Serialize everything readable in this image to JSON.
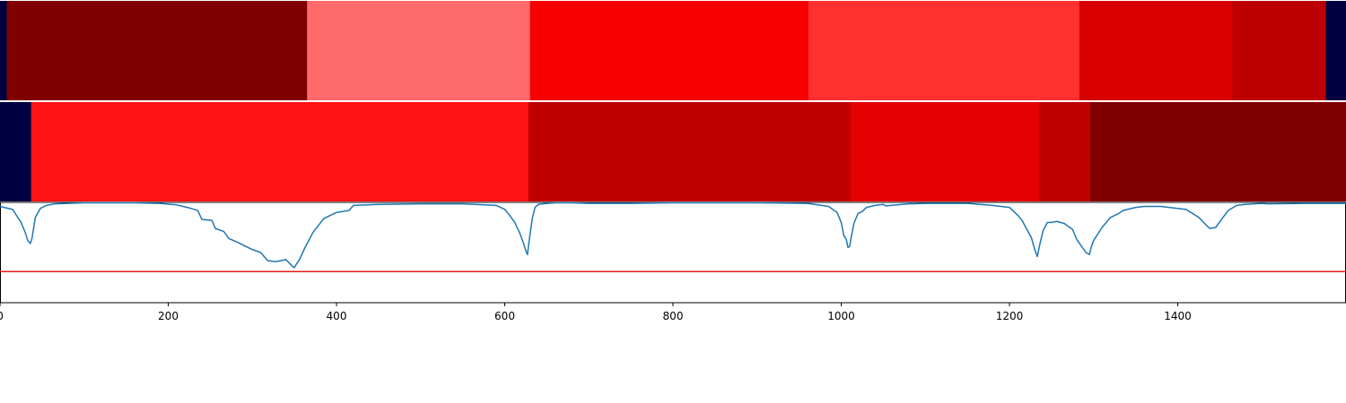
{
  "chart_data": {
    "type": "segmentation-with-line",
    "x_range": [
      0,
      1600
    ],
    "x_ticks": [
      0,
      200,
      400,
      600,
      800,
      1000,
      1200,
      1400
    ],
    "x_tick_labels": [
      "0",
      "200",
      "400",
      "600",
      "800",
      "1000",
      "1200",
      "1400"
    ],
    "segment_rows": [
      {
        "segments": [
          {
            "start": 0,
            "end": 8,
            "color": "#000040"
          },
          {
            "start": 8,
            "end": 365,
            "color": "#800000"
          },
          {
            "start": 365,
            "end": 630,
            "color": "#ff6a6a"
          },
          {
            "start": 630,
            "end": 961,
            "color": "#f60000"
          },
          {
            "start": 961,
            "end": 1283,
            "color": "#ff3030"
          },
          {
            "start": 1283,
            "end": 1465,
            "color": "#d90000"
          },
          {
            "start": 1465,
            "end": 1576,
            "color": "#bd0000"
          },
          {
            "start": 1576,
            "end": 1600,
            "color": "#000040"
          }
        ]
      },
      {
        "segments": [
          {
            "start": 0,
            "end": 37,
            "color": "#000040"
          },
          {
            "start": 37,
            "end": 628,
            "color": "#ff1212"
          },
          {
            "start": 628,
            "end": 1011,
            "color": "#c00000"
          },
          {
            "start": 1011,
            "end": 1235,
            "color": "#e40000"
          },
          {
            "start": 1235,
            "end": 1296,
            "color": "#be0000"
          },
          {
            "start": 1296,
            "end": 1600,
            "color": "#800000"
          }
        ]
      }
    ],
    "line_panel": {
      "ylim": [
        0,
        1
      ],
      "threshold": 0.31,
      "threshold_color": "#e41a1c",
      "series_color": "#1f77b4",
      "series": {
        "x": [
          0,
          15,
          25,
          30,
          33,
          36,
          38,
          42,
          48,
          55,
          65,
          80,
          100,
          130,
          160,
          190,
          210,
          225,
          235,
          240,
          252,
          256,
          266,
          272,
          283,
          290,
          300,
          310,
          318,
          328,
          340,
          348,
          350,
          352,
          356,
          362,
          372,
          385,
          400,
          415,
          420,
          450,
          500,
          550,
          590,
          600,
          605,
          612,
          618,
          622,
          625,
          627,
          628,
          630,
          633,
          636,
          640,
          650,
          660,
          680,
          700,
          750,
          800,
          850,
          900,
          960,
          985,
          995,
          1000,
          1003,
          1006,
          1008,
          1010,
          1012,
          1015,
          1020,
          1025,
          1030,
          1040,
          1050,
          1053,
          1080,
          1100,
          1150,
          1180,
          1200,
          1210,
          1215,
          1220,
          1226,
          1230,
          1233,
          1236,
          1240,
          1245,
          1250,
          1256,
          1265,
          1275,
          1280,
          1285,
          1291,
          1295,
          1297,
          1300,
          1310,
          1320,
          1330,
          1335,
          1340,
          1350,
          1360,
          1380,
          1410,
          1425,
          1432,
          1438,
          1445,
          1452,
          1460,
          1470,
          1480,
          1500,
          1507,
          1550,
          1600
        ],
        "y": [
          0.96,
          0.93,
          0.8,
          0.7,
          0.62,
          0.59,
          0.64,
          0.85,
          0.94,
          0.97,
          0.985,
          0.99,
          0.995,
          0.995,
          0.995,
          0.99,
          0.975,
          0.945,
          0.92,
          0.83,
          0.82,
          0.74,
          0.71,
          0.64,
          0.6,
          0.57,
          0.53,
          0.5,
          0.42,
          0.41,
          0.43,
          0.36,
          0.35,
          0.38,
          0.43,
          0.54,
          0.7,
          0.84,
          0.9,
          0.92,
          0.97,
          0.98,
          0.985,
          0.985,
          0.97,
          0.93,
          0.88,
          0.8,
          0.69,
          0.6,
          0.52,
          0.48,
          0.55,
          0.68,
          0.85,
          0.95,
          0.98,
          0.99,
          0.995,
          0.995,
          0.99,
          0.99,
          0.995,
          0.995,
          0.995,
          0.99,
          0.96,
          0.9,
          0.8,
          0.67,
          0.63,
          0.55,
          0.56,
          0.66,
          0.79,
          0.89,
          0.91,
          0.95,
          0.97,
          0.98,
          0.965,
          0.985,
          0.99,
          0.99,
          0.97,
          0.95,
          0.87,
          0.82,
          0.74,
          0.65,
          0.53,
          0.46,
          0.58,
          0.72,
          0.8,
          0.8,
          0.81,
          0.79,
          0.73,
          0.63,
          0.57,
          0.5,
          0.48,
          0.55,
          0.62,
          0.75,
          0.85,
          0.89,
          0.92,
          0.93,
          0.95,
          0.96,
          0.96,
          0.93,
          0.85,
          0.79,
          0.74,
          0.75,
          0.83,
          0.92,
          0.97,
          0.98,
          0.99,
          0.985,
          0.99,
          0.99
        ]
      }
    }
  }
}
